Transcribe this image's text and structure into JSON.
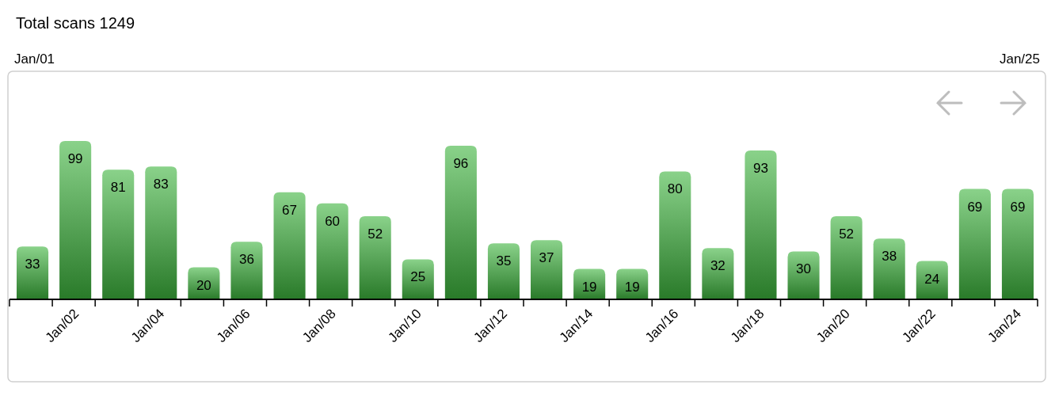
{
  "chart_data": {
    "type": "bar",
    "title": "Total scans 1249",
    "annotations": [
      "Jan/01",
      "Jan/25"
    ],
    "categories": [
      null,
      "Jan/02",
      null,
      "Jan/04",
      null,
      "Jan/06",
      null,
      "Jan/08",
      null,
      "Jan/10",
      null,
      "Jan/12",
      null,
      "Jan/14",
      null,
      "Jan/16",
      null,
      "Jan/18",
      null,
      "Jan/20",
      null,
      "Jan/22",
      null,
      "Jan/24"
    ],
    "values": [
      33,
      99,
      81,
      83,
      20,
      36,
      67,
      60,
      52,
      25,
      96,
      35,
      37,
      19,
      19,
      80,
      32,
      93,
      30,
      52,
      38,
      24,
      69,
      69
    ],
    "color": "#3cb43c",
    "data_labels": true,
    "tick_labels": "x"
  }
}
